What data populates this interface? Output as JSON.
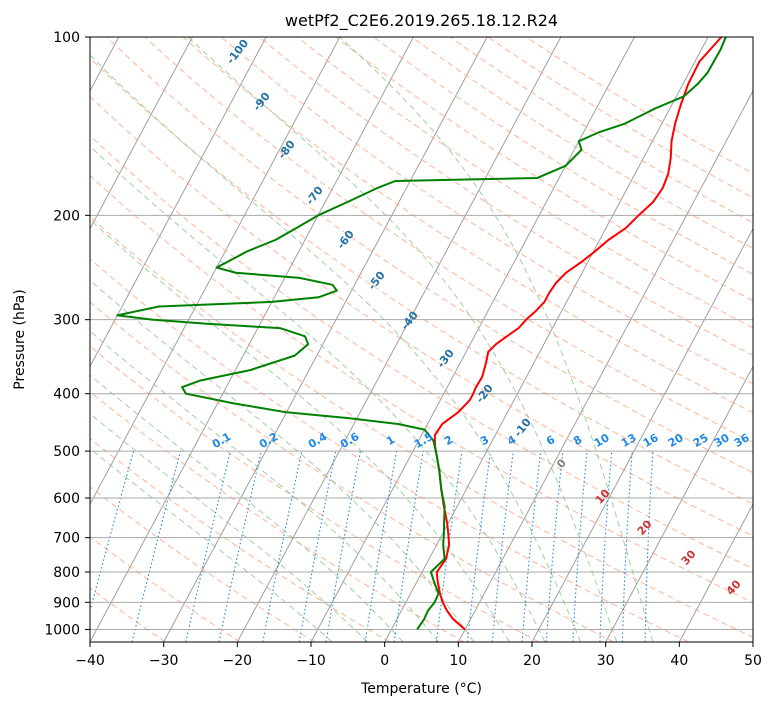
{
  "chart_data": {
    "type": "skew-t",
    "title": "wetPf2_C2E6.2019.265.18.12.R24",
    "xlabel": "Temperature (°C)",
    "ylabel": "Pressure (hPa)",
    "xlim": [
      -40,
      50
    ],
    "ylim": [
      1050,
      100
    ],
    "y_scale": "log",
    "skew_per_decade_C": 43,
    "x_ticks": [
      -40,
      -30,
      -20,
      -10,
      0,
      10,
      20,
      30,
      40,
      50
    ],
    "y_ticks": [
      1000,
      900,
      800,
      700,
      600,
      500,
      400,
      300,
      200,
      100
    ],
    "grid": true,
    "colors": {
      "temperature": "#ff0000",
      "dewpoint": "#008000",
      "isotherm": "#a0a0a0",
      "dry_adiabat": "#ffa07a",
      "moist_adiabat": "#90c890",
      "mixing_ratio": "#1e88e5",
      "moist_label": "#2471a3",
      "dry_label": "#cc3333",
      "zero_label": "#808080"
    },
    "series": [
      {
        "role": "temperature",
        "points": [
          [
            10,
            1000
          ],
          [
            7.6,
            960
          ],
          [
            6.2,
            930
          ],
          [
            5,
            900
          ],
          [
            4,
            870
          ],
          [
            2.8,
            830
          ],
          [
            2,
            800
          ],
          [
            2.3,
            760
          ],
          [
            1.7,
            720
          ],
          [
            0.8,
            690
          ],
          [
            -0.2,
            660
          ],
          [
            -1.8,
            620
          ],
          [
            -3.4,
            580
          ],
          [
            -5,
            540
          ],
          [
            -6.4,
            510
          ],
          [
            -7.4,
            490
          ],
          [
            -8.2,
            470
          ],
          [
            -8,
            450
          ],
          [
            -6.7,
            430
          ],
          [
            -6,
            410
          ],
          [
            -6,
            400
          ],
          [
            -6.1,
            390
          ],
          [
            -6,
            375
          ],
          [
            -6.5,
            355
          ],
          [
            -7,
            340
          ],
          [
            -6.5,
            330
          ],
          [
            -5.6,
            320
          ],
          [
            -4.6,
            310
          ],
          [
            -4.2,
            300
          ],
          [
            -3.5,
            290
          ],
          [
            -3,
            280
          ],
          [
            -3,
            270
          ],
          [
            -2.8,
            260
          ],
          [
            -2.2,
            250
          ],
          [
            -0.9,
            240
          ],
          [
            0.2,
            230
          ],
          [
            1.2,
            220
          ],
          [
            2.7,
            210
          ],
          [
            3.5,
            200
          ],
          [
            4.5,
            190
          ],
          [
            4.8,
            180
          ],
          [
            4.5,
            170
          ],
          [
            3.7,
            160
          ],
          [
            2.6,
            150
          ],
          [
            1.8,
            140
          ],
          [
            1.2,
            130
          ],
          [
            0.7,
            120
          ],
          [
            0.6,
            110
          ],
          [
            1.8,
            100
          ]
        ]
      },
      {
        "role": "dewpoint",
        "points": [
          [
            3.5,
            1000
          ],
          [
            3.7,
            960
          ],
          [
            3.6,
            930
          ],
          [
            3.9,
            900
          ],
          [
            3.8,
            870
          ],
          [
            2.3,
            830
          ],
          [
            1.2,
            800
          ],
          [
            2.1,
            760
          ],
          [
            0.9,
            720
          ],
          [
            0.2,
            690
          ],
          [
            -0.6,
            660
          ],
          [
            -1.7,
            620
          ],
          [
            -3.4,
            580
          ],
          [
            -5,
            540
          ],
          [
            -6.4,
            510
          ],
          [
            -8,
            480
          ],
          [
            -10,
            460
          ],
          [
            -14,
            450
          ],
          [
            -21,
            440
          ],
          [
            -30,
            430
          ],
          [
            -38,
            415
          ],
          [
            -45,
            400
          ],
          [
            -46,
            390
          ],
          [
            -44,
            380
          ],
          [
            -38,
            365
          ],
          [
            -33,
            345
          ],
          [
            -32,
            330
          ],
          [
            -33,
            320
          ],
          [
            -37,
            310
          ],
          [
            -47,
            305
          ],
          [
            -55,
            300
          ],
          [
            -60,
            295
          ],
          [
            -55,
            285
          ],
          [
            -40,
            280
          ],
          [
            -34,
            275
          ],
          [
            -32,
            268
          ],
          [
            -33,
            262
          ],
          [
            -38,
            255
          ],
          [
            -47,
            250
          ],
          [
            -50,
            245
          ],
          [
            -49,
            240
          ],
          [
            -47,
            230
          ],
          [
            -44,
            220
          ],
          [
            -42,
            210
          ],
          [
            -40,
            200
          ],
          [
            -37,
            190
          ],
          [
            -34,
            180
          ],
          [
            -32,
            175
          ],
          [
            -13,
            173
          ],
          [
            -10,
            165
          ],
          [
            -9,
            155
          ],
          [
            -10,
            150
          ],
          [
            -8,
            145
          ],
          [
            -5,
            140
          ],
          [
            -2,
            132
          ],
          [
            1,
            126
          ],
          [
            2,
            120
          ],
          [
            2.5,
            115
          ],
          [
            2.6,
            105
          ],
          [
            2.4,
            100
          ]
        ]
      }
    ],
    "moist_adiabat_labels": [
      "-100",
      "-90",
      "-80",
      "-70",
      "-60",
      "-50",
      "-40",
      "-30",
      "-20",
      "-10"
    ],
    "mixing_ratio_labels": [
      "0.1",
      "0.2",
      "0.4",
      "0.6",
      "1",
      "1.5",
      "2",
      "3",
      "4",
      "6",
      "8",
      "10",
      "13",
      "16",
      "20",
      "25",
      "30",
      "36"
    ],
    "dry_adiabat_labels": [
      "0",
      "10",
      "20",
      "30",
      "40"
    ]
  }
}
